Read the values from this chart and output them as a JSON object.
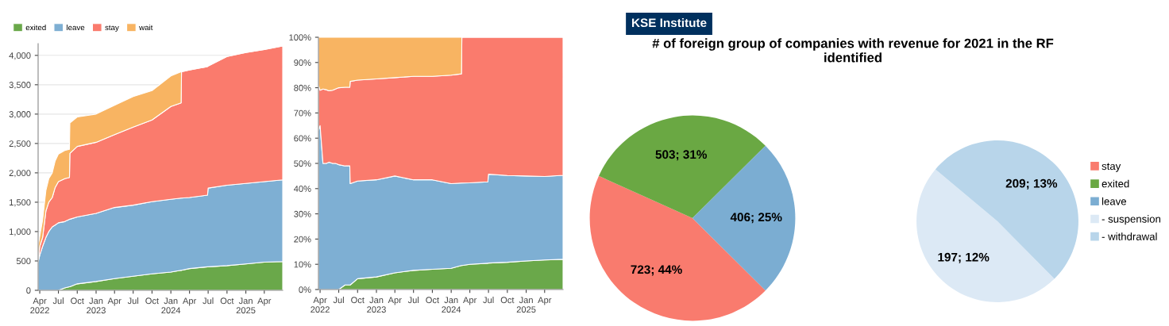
{
  "chart_data": [
    {
      "type": "area",
      "stacked": true,
      "legend": "top left",
      "grid": "y",
      "x": [
        "2022-03-24",
        "2022-04-01",
        "2022-04-15",
        "2022-05-01",
        "2022-05-15",
        "2022-06-01",
        "2022-06-15",
        "2022-07-01",
        "2022-08-01",
        "2022-08-24",
        "2022-08-26",
        "2022-10-01",
        "2023-01-01",
        "2023-04-01",
        "2023-07-01",
        "2023-10-01",
        "2024-01-01",
        "2024-02-20",
        "2024-02-22",
        "2024-04-01",
        "2024-06-28",
        "2024-07-01",
        "2024-10-01",
        "2025-01-01",
        "2025-04-01",
        "2025-06-30"
      ],
      "series": [
        {
          "name": "exited",
          "color": "#6aa84a",
          "values": [
            0,
            0,
            0,
            0,
            0,
            0,
            0,
            0,
            40,
            60,
            60,
            110,
            150,
            200,
            240,
            280,
            310,
            340,
            340,
            370,
            400,
            400,
            420,
            450,
            480,
            490
          ]
        },
        {
          "name": "leave",
          "color": "#7eafd3",
          "values": [
            480,
            600,
            750,
            900,
            1000,
            1080,
            1110,
            1150,
            1130,
            1150,
            1150,
            1140,
            1160,
            1210,
            1210,
            1230,
            1240,
            1230,
            1230,
            1210,
            1220,
            1340,
            1370,
            1370,
            1370,
            1390
          ]
        },
        {
          "name": "stay",
          "color": "#fa7b6d",
          "values": [
            20,
            150,
            150,
            450,
            500,
            500,
            640,
            700,
            730,
            710,
            1120,
            1200,
            1210,
            1240,
            1330,
            1390,
            1580,
            1620,
            2150,
            2170,
            2190,
            2080,
            2190,
            2230,
            2250,
            2280
          ]
        },
        {
          "name": "wait",
          "color": "#f8b462",
          "values": [
            250,
            170,
            300,
            350,
            400,
            420,
            450,
            470,
            480,
            480,
            520,
            500,
            480,
            500,
            520,
            500,
            520,
            530,
            0,
            0,
            0,
            0,
            0,
            0,
            0,
            0
          ]
        }
      ],
      "xlim": [
        "2022-03-24",
        "2025-06-30"
      ],
      "ylim": [
        0,
        4200
      ],
      "xticks": [
        {
          "value": "2022-04",
          "label": "Apr\n2022"
        },
        {
          "value": "2022-07",
          "label": "Jul"
        },
        {
          "value": "2022-10",
          "label": "Oct"
        },
        {
          "value": "2023-01",
          "label": "Jan\n2023"
        },
        {
          "value": "2023-04",
          "label": "Apr"
        },
        {
          "value": "2023-07",
          "label": "Jul"
        },
        {
          "value": "2023-10",
          "label": "Oct"
        },
        {
          "value": "2024-01",
          "label": "Jan\n2024"
        },
        {
          "value": "2024-04",
          "label": "Apr"
        },
        {
          "value": "2024-07",
          "label": "Jul"
        },
        {
          "value": "2024-10",
          "label": "Oct"
        },
        {
          "value": "2025-01",
          "label": "Jan\n2025"
        },
        {
          "value": "2025-04",
          "label": "Apr"
        }
      ],
      "yticks": [
        0,
        500,
        {
          "value": 1000,
          "label": "1,000"
        },
        {
          "value": 1500,
          "label": "1,500"
        },
        {
          "value": 2000,
          "label": "2,000"
        },
        {
          "value": 2500,
          "label": "2,500"
        },
        {
          "value": 3000,
          "label": "3,000"
        },
        {
          "value": 3500,
          "label": "3,500"
        },
        {
          "value": 4000,
          "label": "4,000"
        }
      ]
    },
    {
      "type": "area",
      "stacked": true,
      "x": [
        "2022-03-24",
        "2022-04-01",
        "2022-04-15",
        "2022-05-01",
        "2022-05-15",
        "2022-06-01",
        "2022-06-15",
        "2022-07-01",
        "2022-08-01",
        "2022-08-24",
        "2022-08-26",
        "2022-10-01",
        "2023-01-01",
        "2023-04-01",
        "2023-07-01",
        "2023-10-01",
        "2024-01-01",
        "2024-02-20",
        "2024-02-22",
        "2024-04-01",
        "2024-06-28",
        "2024-07-01",
        "2024-10-01",
        "2025-01-01",
        "2025-04-01",
        "2025-06-30"
      ],
      "series": [
        {
          "color": "#6aa84a",
          "values": [
            0,
            0,
            0,
            0,
            0,
            0,
            0,
            0,
            1.8,
            1.8,
            1.8,
            4.3,
            5,
            6.6,
            7.6,
            8,
            8.4,
            9.5,
            9.5,
            10,
            10.4,
            10.5,
            10.8,
            11.3,
            11.7,
            12
          ]
        },
        {
          "color": "#7eafd3",
          "values": [
            63,
            65,
            50,
            50,
            50.5,
            50,
            50,
            49.5,
            47.2,
            47.2,
            40.2,
            38.7,
            38.5,
            38.4,
            35.9,
            35.5,
            33.6,
            32.7,
            32.7,
            32.3,
            32.3,
            35.2,
            34.4,
            33.7,
            33.1,
            33.3
          ]
        },
        {
          "color": "#fa7b6d",
          "values": [
            18,
            14,
            29.5,
            29.2,
            28.3,
            29,
            29.5,
            30.5,
            31.2,
            31.2,
            40.5,
            40,
            40,
            39,
            41,
            41,
            43,
            43.3,
            57.8,
            57.7,
            57.3,
            54.3,
            54.8,
            55,
            55.2,
            54.7
          ]
        },
        {
          "color": "#f8b462",
          "values": [
            19,
            21,
            20.5,
            20.8,
            21.2,
            21,
            20.5,
            20,
            19.8,
            19.8,
            17.5,
            17,
            16.5,
            16,
            15.5,
            15.5,
            15,
            14.5,
            0,
            0,
            0,
            0,
            0,
            0,
            0,
            0
          ]
        }
      ],
      "xlim": [
        "2022-03-24",
        "2025-06-30"
      ],
      "ylim": [
        0,
        100
      ],
      "xticks": [
        {
          "value": "2022-04",
          "label": "Apr\n2022"
        },
        {
          "value": "2022-07",
          "label": "Jul"
        },
        {
          "value": "2022-10",
          "label": "Oct"
        },
        {
          "value": "2023-01",
          "label": "Jan\n2023"
        },
        {
          "value": "2023-04",
          "label": "Apr"
        },
        {
          "value": "2023-07",
          "label": "Jul"
        },
        {
          "value": "2023-10",
          "label": "Oct"
        },
        {
          "value": "2024-01",
          "label": "Jan\n2024"
        },
        {
          "value": "2024-04",
          "label": "Apr"
        },
        {
          "value": "2024-07",
          "label": "Jul"
        },
        {
          "value": "2024-10",
          "label": "Oct"
        },
        {
          "value": "2025-01",
          "label": "Jan\n2025"
        },
        {
          "value": "2025-04",
          "label": "Apr"
        }
      ],
      "yticks": [
        {
          "value": 0,
          "label": "0%"
        },
        {
          "value": 10,
          "label": "10%"
        },
        {
          "value": 20,
          "label": "20%"
        },
        {
          "value": 30,
          "label": "30%"
        },
        {
          "value": 40,
          "label": "40%"
        },
        {
          "value": 50,
          "label": "50%"
        },
        {
          "value": 60,
          "label": "60%"
        },
        {
          "value": 70,
          "label": "70%"
        },
        {
          "value": 80,
          "label": "80%"
        },
        {
          "value": 90,
          "label": "90%"
        },
        {
          "value": 100,
          "label": "100%"
        }
      ]
    },
    {
      "type": "pie",
      "title": "# of foreign group of companies with revenue for 2021 in the RF identified",
      "annotations": [
        "KSE Institute"
      ],
      "legend": "right",
      "categories": [
        "stay",
        "exited",
        "leave"
      ],
      "values": [
        723,
        503,
        406
      ],
      "colors": [
        "#f97b6e",
        "#6aa843",
        "#7badd2"
      ],
      "value_labels": [
        "723; 44%",
        "503; 31%",
        "406; 25%"
      ]
    },
    {
      "type": "pie",
      "legend": "right",
      "categories": [
        "- suspension",
        "- withdrawal"
      ],
      "values": [
        197,
        209
      ],
      "colors": [
        "#dce9f5",
        "#b8d5ea"
      ],
      "value_labels": [
        "197; 12%",
        "209; 13%"
      ]
    }
  ]
}
